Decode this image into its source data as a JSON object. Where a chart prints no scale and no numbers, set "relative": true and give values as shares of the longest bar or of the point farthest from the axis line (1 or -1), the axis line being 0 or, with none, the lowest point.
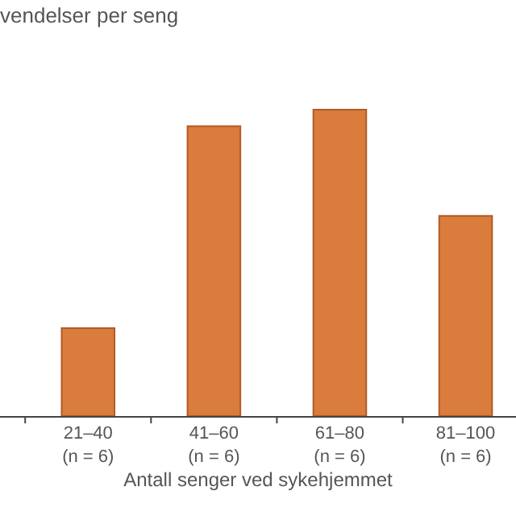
{
  "chart_data": {
    "type": "bar",
    "title": "vendelser per seng",
    "xlabel": "Antall senger ved sykehjemmet",
    "categories": [
      "21–40\n(n = 6)",
      "41–60\n(n = 6)",
      "61–80\n(n = 6)",
      "81–100\n(n = 6)"
    ],
    "values": [
      0.287,
      0.946,
      1,
      0.653
    ],
    "color": "#d97c3c",
    "relative": true,
    "legend": false
  }
}
